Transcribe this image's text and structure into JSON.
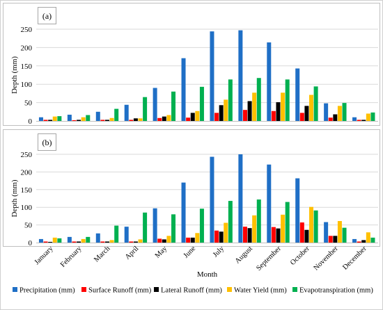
{
  "chart_data": [
    {
      "type": "bar",
      "panel_label": "(a)",
      "ylabel": "Depth (mm)",
      "ylim": [
        0,
        250
      ],
      "yticks": [
        0,
        50,
        100,
        150,
        200,
        250
      ],
      "categories": [
        "January",
        "February",
        "March",
        "April",
        "May",
        "June",
        "July",
        "August",
        "September",
        "October",
        "November",
        "December"
      ],
      "series": [
        {
          "name": "Precipitation (mm)",
          "color": "#1f6fc6",
          "values": [
            10,
            17,
            25,
            44,
            90,
            171,
            244,
            247,
            214,
            143,
            48,
            10
          ]
        },
        {
          "name": "Surface Runoff (mm)",
          "color": "#ff0000",
          "values": [
            3,
            2,
            3,
            3,
            8,
            9,
            22,
            30,
            27,
            22,
            9,
            3
          ]
        },
        {
          "name": "Lateral Runoff (mm)",
          "color": "#000000",
          "values": [
            3,
            3,
            3,
            7,
            12,
            22,
            43,
            54,
            51,
            41,
            18,
            3
          ]
        },
        {
          "name": "Water Yield (mm)",
          "color": "#ffc000",
          "values": [
            12,
            10,
            8,
            7,
            16,
            27,
            58,
            77,
            77,
            71,
            41,
            20
          ]
        },
        {
          "name": "Evapotranspiration (mm)",
          "color": "#00b050",
          "values": [
            13,
            16,
            33,
            65,
            80,
            93,
            113,
            117,
            113,
            94,
            49,
            23
          ]
        }
      ]
    },
    {
      "type": "bar",
      "panel_label": "(b)",
      "ylabel": "Depth (mm)",
      "xlabel": "Month",
      "ylim": [
        0,
        250
      ],
      "yticks": [
        0,
        50,
        100,
        150,
        200,
        250
      ],
      "categories": [
        "January",
        "February",
        "March",
        "April",
        "May",
        "June",
        "July",
        "August",
        "September",
        "October",
        "November",
        "December"
      ],
      "series": [
        {
          "name": "Precipitation (mm)",
          "color": "#1f6fc6",
          "values": [
            10,
            16,
            26,
            45,
            97,
            170,
            243,
            250,
            221,
            182,
            58,
            10
          ]
        },
        {
          "name": "Surface Runoff (mm)",
          "color": "#ff0000",
          "values": [
            3,
            3,
            3,
            3,
            11,
            14,
            34,
            45,
            44,
            57,
            19,
            3
          ]
        },
        {
          "name": "Lateral Runoff (mm)",
          "color": "#000000",
          "values": [
            2,
            3,
            3,
            3,
            9,
            14,
            31,
            41,
            40,
            36,
            19,
            7
          ]
        },
        {
          "name": "Water Yield (mm)",
          "color": "#ffc000",
          "values": [
            14,
            10,
            7,
            9,
            19,
            27,
            56,
            77,
            79,
            101,
            61,
            29
          ]
        },
        {
          "name": "Evapotranspiration (mm)",
          "color": "#00b050",
          "values": [
            12,
            16,
            48,
            85,
            80,
            96,
            118,
            122,
            115,
            91,
            42,
            14
          ]
        }
      ]
    }
  ]
}
